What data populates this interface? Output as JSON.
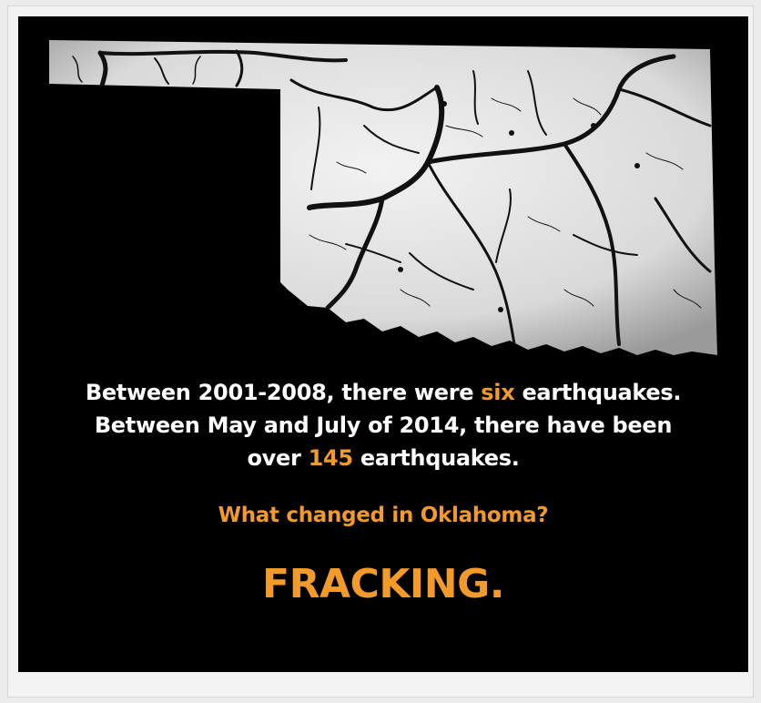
{
  "poster": {
    "line1": {
      "before": "Between 2001-2008, there were ",
      "highlight": "six",
      "after": " earthquakes."
    },
    "line2": "Between May and July of 2014, there have been",
    "line3": {
      "before": "over ",
      "highlight": "145",
      "after": " earthquakes."
    },
    "question": "What changed in Oklahoma?",
    "answer": "FRACKING."
  },
  "colors": {
    "background": "#000000",
    "text": "#ffffff",
    "accent": "#f29a2a",
    "map_fill": "#e8e8e8",
    "crack": "#111111"
  },
  "icons": {
    "map": "oklahoma-cracked-earth-map"
  }
}
